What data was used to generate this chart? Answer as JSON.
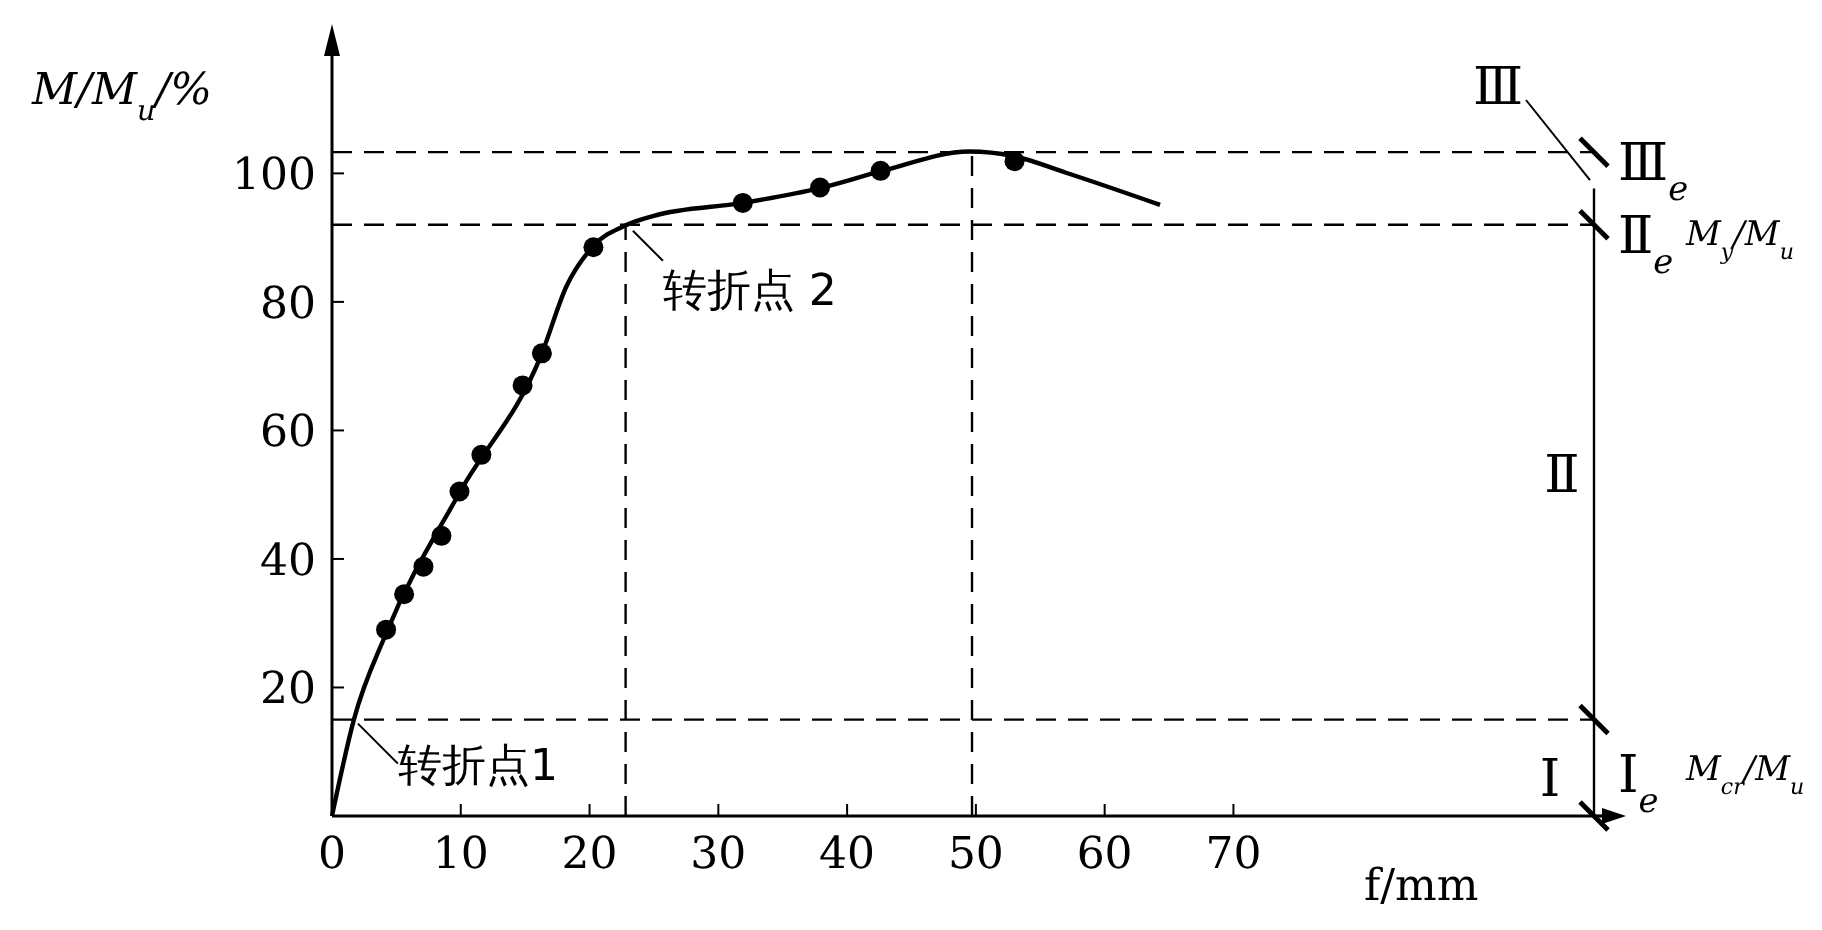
{
  "chart_data": {
    "type": "line",
    "xlabel": "f/mm",
    "ylabel": "M/M$_{u}$/%",
    "xlim": [
      0,
      98
    ],
    "ylim": [
      0,
      122
    ],
    "xticks": [
      0,
      10,
      20,
      30,
      40,
      50,
      60,
      70
    ],
    "yticks": [
      20,
      40,
      60,
      80,
      100
    ],
    "grid": false,
    "series": [
      {
        "color": "#000000",
        "marker": "none",
        "x": [
          0,
          1.7,
          4.2,
          9.9,
          16.3,
          18.2,
          20.3,
          22.9,
          25,
          31.9,
          37.9,
          42.6,
          49.5,
          52.9,
          57,
          64.3
        ],
        "values": [
          0,
          15,
          28.4,
          50.3,
          72,
          82.4,
          88.7,
          92,
          93.4,
          95.4,
          97.7,
          100.3,
          103.4,
          102.7,
          100.1,
          95.1
        ]
      },
      {
        "type": "scatter",
        "color": "#000000",
        "marker": "circle",
        "x": [
          4.2,
          5.6,
          7.1,
          8.5,
          9.9,
          11.6,
          14.8,
          16.3,
          20.3,
          31.9,
          37.9,
          42.6,
          53
        ],
        "values": [
          29,
          34.5,
          38.8,
          43.6,
          50.5,
          56.2,
          67,
          72,
          88.5,
          95.4,
          97.8,
          100.4,
          101.9
        ]
      }
    ],
    "ref_lines": [
      {
        "axis": "y",
        "value": 15,
        "line_style": "dashed"
      },
      {
        "axis": "y",
        "value": 92,
        "line_style": "dashed"
      },
      {
        "axis": "y",
        "value": 103.3,
        "line_style": "dashed"
      },
      {
        "axis": "x",
        "value": 22.8,
        "line_style": "dashed"
      },
      {
        "axis": "x",
        "value": 49.7,
        "line_style": "dashed"
      }
    ],
    "annotations": [
      {
        "text": "转折点1",
        "x": 1.7,
        "y": 15
      },
      {
        "text": "转折点 2",
        "x": 22.9,
        "y": 92
      },
      "Ⅰ",
      "Ⅱ",
      "Ⅲ",
      "Ⅰ$_{e}$",
      "Ⅱ$_{e}$",
      "Ⅲ$_{e}$",
      "M$_{cr}$/M$_{u}$",
      "M$_{y}$/M$_{u}$"
    ]
  }
}
